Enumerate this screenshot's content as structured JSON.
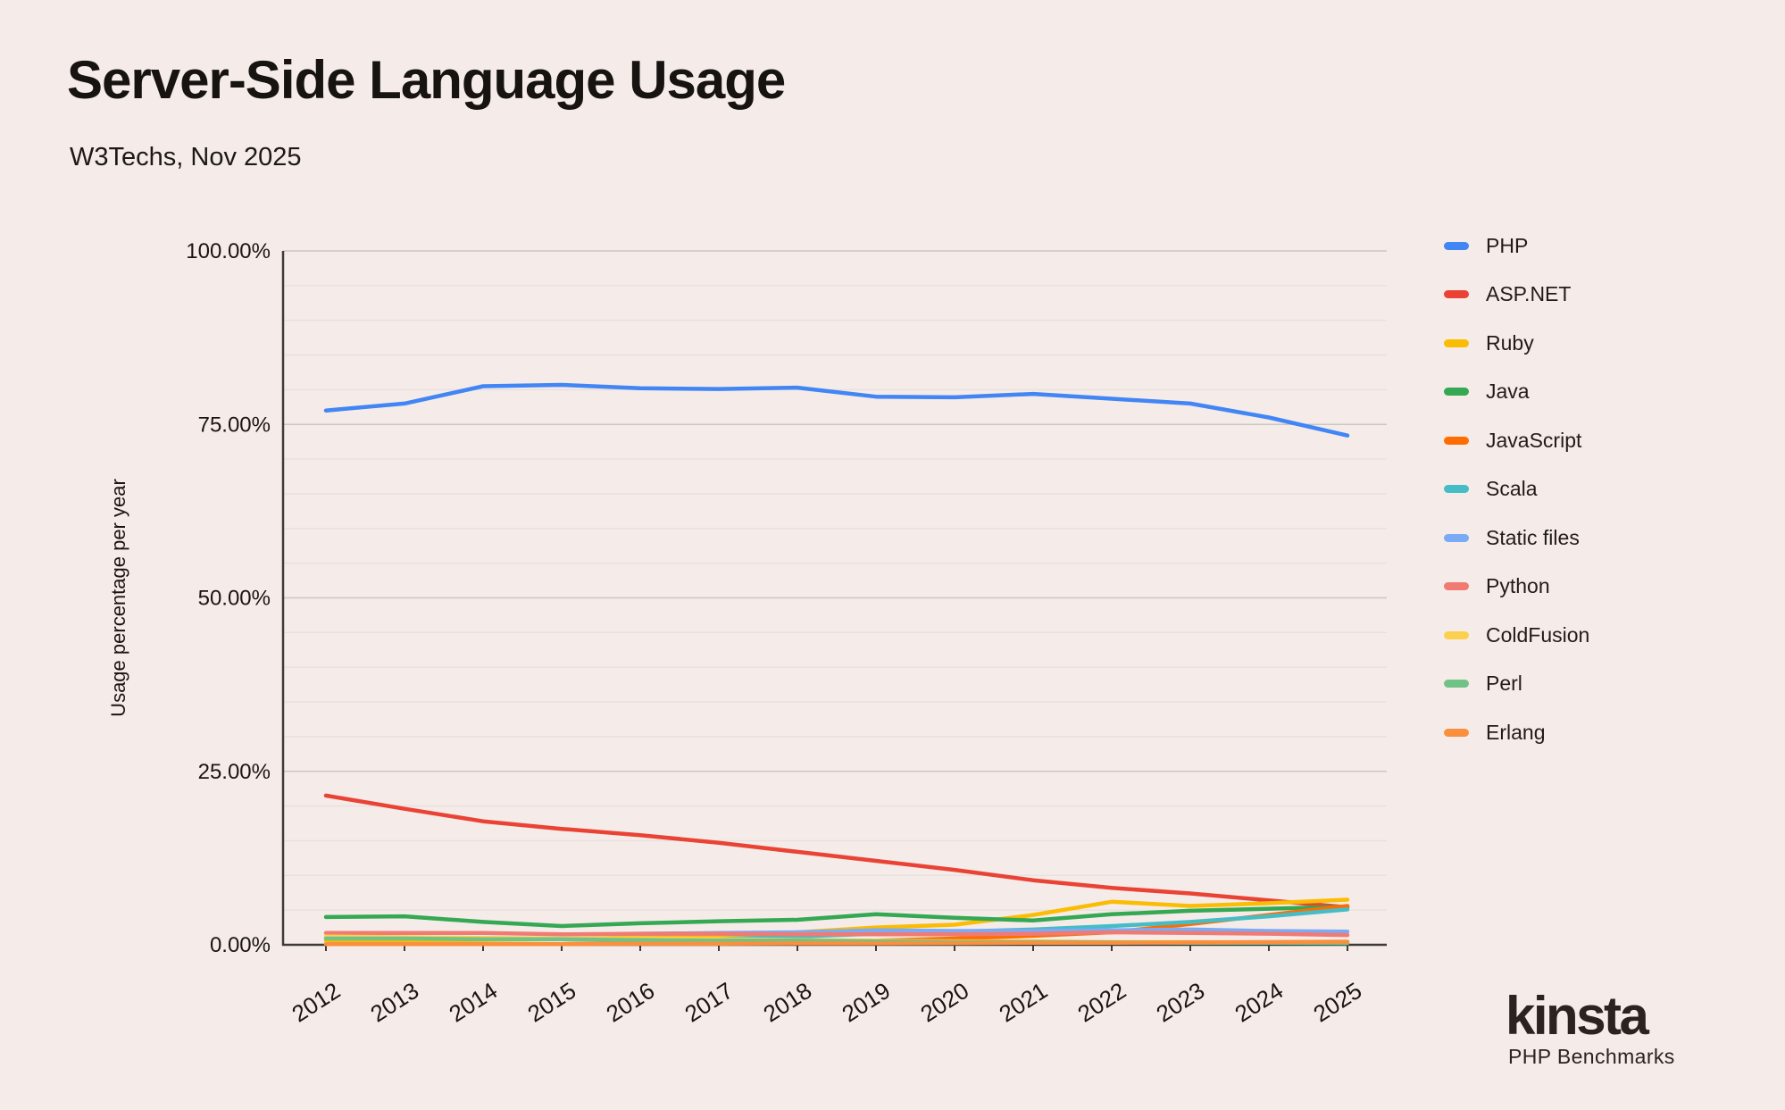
{
  "page": {
    "title": "Server-Side Language Usage",
    "subtitle": "W3Techs, Nov 2025",
    "background_color": "#F5ECE9"
  },
  "branding": {
    "logo_text": "kinsta",
    "tagline": "PHP Benchmarks"
  },
  "chart_data": {
    "type": "line",
    "title": "Server-Side Language Usage",
    "subtitle": "W3Techs, Nov 2025",
    "xlabel": "",
    "ylabel": "Usage percentage per year",
    "ylim": [
      0,
      100
    ],
    "y_minor_step": 5,
    "grid": true,
    "legend_position": "right",
    "y_ticks": [
      {
        "value": 0,
        "label": "0.00%"
      },
      {
        "value": 25,
        "label": "25.00%"
      },
      {
        "value": 50,
        "label": "50.00%"
      },
      {
        "value": 75,
        "label": "75.00%"
      },
      {
        "value": 100,
        "label": "100.00%"
      }
    ],
    "categories": [
      "2012",
      "2013",
      "2014",
      "2015",
      "2016",
      "2017",
      "2018",
      "2019",
      "2020",
      "2021",
      "2022",
      "2023",
      "2024",
      "2025"
    ],
    "series": [
      {
        "name": "PHP",
        "color": "#4285F4",
        "values": [
          77.0,
          78.0,
          80.5,
          80.7,
          80.2,
          80.1,
          80.3,
          79.0,
          78.9,
          79.4,
          78.7,
          78.0,
          76.0,
          73.4
        ]
      },
      {
        "name": "ASP.NET",
        "color": "#EA4335",
        "values": [
          21.5,
          19.6,
          17.8,
          16.7,
          15.8,
          14.7,
          13.4,
          12.1,
          10.8,
          9.3,
          8.2,
          7.4,
          6.4,
          5.4
        ]
      },
      {
        "name": "Ruby",
        "color": "#FBBC04",
        "values": [
          0.6,
          0.6,
          0.7,
          0.8,
          1.1,
          1.3,
          1.8,
          2.5,
          2.9,
          4.3,
          6.2,
          5.6,
          6.0,
          6.5
        ]
      },
      {
        "name": "Java",
        "color": "#34A853",
        "values": [
          4.0,
          4.1,
          3.3,
          2.7,
          3.1,
          3.4,
          3.6,
          4.4,
          3.9,
          3.5,
          4.4,
          4.9,
          5.2,
          5.5
        ]
      },
      {
        "name": "JavaScript",
        "color": "#FF6D01",
        "values": [
          null,
          null,
          0.1,
          0.1,
          0.2,
          0.3,
          0.4,
          0.6,
          0.9,
          1.3,
          1.8,
          3.0,
          4.3,
          5.6
        ]
      },
      {
        "name": "Scala",
        "color": "#46BDC6",
        "values": [
          null,
          null,
          null,
          null,
          null,
          0.8,
          1.2,
          1.6,
          1.9,
          2.2,
          2.7,
          3.3,
          4.1,
          5.1
        ]
      },
      {
        "name": "Static files",
        "color": "#7BAAF7",
        "values": [
          null,
          null,
          null,
          null,
          1.6,
          1.7,
          1.8,
          2.1,
          2.0,
          2.0,
          2.1,
          2.2,
          2.0,
          1.9
        ]
      },
      {
        "name": "Python",
        "color": "#F07B72",
        "values": [
          1.7,
          1.7,
          1.7,
          1.5,
          1.6,
          1.6,
          1.5,
          1.5,
          1.5,
          1.6,
          1.8,
          1.7,
          1.6,
          1.4
        ]
      },
      {
        "name": "ColdFusion",
        "color": "#FCD04F",
        "values": [
          1.2,
          1.1,
          1.0,
          0.9,
          0.9,
          0.8,
          0.7,
          0.6,
          0.5,
          0.5,
          0.4,
          0.4,
          0.3,
          0.3
        ]
      },
      {
        "name": "Perl",
        "color": "#71C287",
        "values": [
          0.9,
          0.9,
          0.8,
          0.8,
          0.7,
          0.6,
          0.6,
          0.5,
          0.4,
          0.4,
          0.35,
          0.3,
          0.3,
          0.25
        ]
      },
      {
        "name": "Erlang",
        "color": "#FA903E",
        "values": [
          0.1,
          0.1,
          0.1,
          0.1,
          0.15,
          0.15,
          0.2,
          0.2,
          0.25,
          0.3,
          0.3,
          0.35,
          0.4,
          0.45
        ]
      }
    ]
  }
}
